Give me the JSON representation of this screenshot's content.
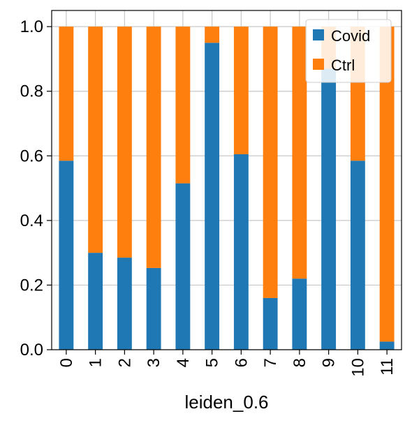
{
  "chart_data": {
    "type": "bar",
    "stacked": true,
    "categories": [
      "0",
      "1",
      "2",
      "3",
      "4",
      "5",
      "6",
      "7",
      "8",
      "9",
      "10",
      "11"
    ],
    "series": [
      {
        "name": "Covid",
        "color": "#1f77b4",
        "values": [
          0.585,
          0.3,
          0.285,
          0.253,
          0.515,
          0.95,
          0.605,
          0.16,
          0.22,
          0.87,
          0.585,
          0.025
        ]
      },
      {
        "name": "Ctrl",
        "color": "#ff7f0e",
        "values": [
          0.415,
          0.7,
          0.715,
          0.747,
          0.485,
          0.05,
          0.395,
          0.84,
          0.78,
          0.13,
          0.415,
          0.975
        ]
      }
    ],
    "xlabel": "leiden_0.6",
    "ylabel": "",
    "ylim": [
      0,
      1.05
    ],
    "yticks": [
      "0.0",
      "0.2",
      "0.4",
      "0.6",
      "0.8",
      "1.0"
    ],
    "grid": true,
    "legend_position": "top-right",
    "legend_entries": [
      "Covid",
      "Ctrl"
    ]
  }
}
